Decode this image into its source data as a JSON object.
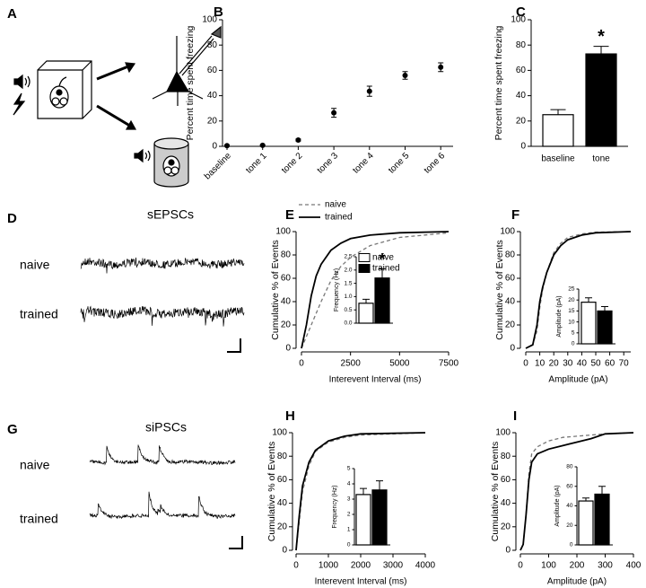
{
  "diagram": {
    "label": "A"
  },
  "traces": [
    {
      "label": "D",
      "title": "sEPSCs",
      "rows": [
        "naive",
        "trained"
      ]
    },
    {
      "label": "G",
      "title": "siPSCs",
      "rows": [
        "naive",
        "trained"
      ]
    }
  ],
  "chart_data": [
    {
      "label": "B",
      "type": "point",
      "ylabel": "Percent time spent freezing",
      "categories": [
        "baseline",
        "tone 1",
        "tone 2",
        "tone 3",
        "tone 4",
        "tone 5",
        "tone 6"
      ],
      "values": [
        0.5,
        0.8,
        5,
        26.5,
        43.5,
        56,
        62.5
      ],
      "errors": [
        0.5,
        0.5,
        0.8,
        3.5,
        4,
        3,
        3.5
      ],
      "color": "#000000",
      "ylim": [
        0,
        100
      ],
      "yticks": [
        0,
        20,
        40,
        60,
        80,
        100
      ]
    },
    {
      "label": "C",
      "type": "bar",
      "ylabel": "Percent time spent freezing",
      "categories": [
        "baseline",
        "tone"
      ],
      "values": [
        25,
        73
      ],
      "errors": [
        4,
        6
      ],
      "colors": [
        "#ffffff",
        "#000000"
      ],
      "annotation": "*",
      "ylim": [
        0,
        100
      ],
      "yticks": [
        0,
        20,
        40,
        60,
        80,
        100
      ]
    },
    {
      "label": "E",
      "type": "line",
      "ylabel": "Cumulative % of Events",
      "xlabel": "Interevent Interval (ms)",
      "xlim": [
        0,
        7500
      ],
      "xticks": [
        0,
        2500,
        5000,
        7500
      ],
      "ylim": [
        0,
        100
      ],
      "yticks": [
        0,
        20,
        40,
        60,
        80,
        100
      ],
      "legend": "top-left",
      "series": [
        {
          "name": "naive",
          "color": "#777777",
          "dashed": true,
          "x": [
            0,
            500,
            1000,
            1500,
            2000,
            2500,
            3500,
            5000,
            7500
          ],
          "values": [
            0,
            20,
            40,
            58,
            70,
            78,
            88,
            95,
            99
          ]
        },
        {
          "name": "trained",
          "color": "#000000",
          "dashed": false,
          "x": [
            0,
            250,
            500,
            750,
            1000,
            1500,
            2000,
            2500,
            3500,
            5000,
            7500
          ],
          "values": [
            0,
            20,
            45,
            62,
            72,
            84,
            90,
            94,
            97,
            99,
            100
          ]
        }
      ],
      "inset": {
        "type": "bar",
        "ylabel": "Frequency (Hz)",
        "ylim": [
          0,
          2.5
        ],
        "yticks": [
          {
            "value": 0,
            "label": "0.0"
          },
          0.5,
          {
            "value": 1,
            "label": "1.0"
          },
          1.5,
          {
            "value": 2,
            "label": "2.0"
          },
          2.5
        ],
        "values": [
          0.75,
          1.7
        ],
        "errors": [
          0.15,
          0.35
        ],
        "colors": [
          "#ffffff",
          "#000000"
        ],
        "legend": [
          "naive",
          "trained"
        ],
        "annotation": "*"
      }
    },
    {
      "label": "F",
      "type": "line",
      "ylabel": "Cumulative % of Events",
      "xlabel": "Amplitude (pA)",
      "xlim": [
        0,
        75
      ],
      "xticks": [
        0,
        10,
        20,
        30,
        40,
        50,
        60,
        70
      ],
      "ylim": [
        0,
        100
      ],
      "yticks": [
        0,
        20,
        40,
        60,
        80,
        100
      ],
      "legend": "none",
      "series": [
        {
          "name": "naive",
          "color": "#777777",
          "dashed": true,
          "x": [
            0,
            5,
            8,
            10,
            12,
            15,
            20,
            25,
            30,
            40,
            50,
            75
          ],
          "values": [
            0,
            3,
            15,
            35,
            50,
            65,
            82,
            90,
            95,
            98,
            99.5,
            100
          ]
        },
        {
          "name": "trained",
          "color": "#000000",
          "dashed": false,
          "x": [
            0,
            5,
            8,
            10,
            12,
            15,
            20,
            25,
            30,
            40,
            50,
            75
          ],
          "values": [
            0,
            3,
            20,
            40,
            52,
            65,
            80,
            88,
            93,
            97,
            99,
            100
          ]
        }
      ],
      "inset": {
        "type": "bar",
        "ylabel": "Amplitude (pA)",
        "ylim": [
          0,
          25
        ],
        "yticks": [
          0,
          5,
          10,
          15,
          20,
          25
        ],
        "values": [
          19,
          15
        ],
        "errors": [
          2,
          2
        ],
        "colors": [
          "#ffffff",
          "#000000"
        ]
      }
    },
    {
      "label": "H",
      "type": "line",
      "ylabel": "Cumulative % of Events",
      "xlabel": "Interevent Interval (ms)",
      "xlim": [
        0,
        4000
      ],
      "xticks": [
        0,
        1000,
        2000,
        3000,
        4000
      ],
      "ylim": [
        0,
        100
      ],
      "yticks": [
        0,
        20,
        40,
        60,
        80,
        100
      ],
      "legend": "none",
      "series": [
        {
          "name": "naive",
          "color": "#777777",
          "dashed": true,
          "x": [
            0,
            100,
            200,
            400,
            600,
            1000,
            1500,
            2000,
            4000
          ],
          "values": [
            0,
            25,
            50,
            72,
            84,
            92,
            96,
            98,
            100
          ]
        },
        {
          "name": "trained",
          "color": "#000000",
          "dashed": false,
          "x": [
            0,
            100,
            200,
            400,
            600,
            1000,
            1500,
            2000,
            4000
          ],
          "values": [
            0,
            30,
            55,
            75,
            85,
            93,
            97,
            99,
            100
          ]
        }
      ],
      "inset": {
        "type": "bar",
        "ylabel": "Frequency (Hz)",
        "ylim": [
          0,
          5
        ],
        "yticks": [
          0,
          1,
          2,
          3,
          4,
          5
        ],
        "values": [
          3.3,
          3.6
        ],
        "errors": [
          0.4,
          0.6
        ],
        "colors": [
          "#ffffff",
          "#000000"
        ]
      }
    },
    {
      "label": "I",
      "type": "line",
      "ylabel": "Cumulative % of Events",
      "xlabel": "Amplitude (pA)",
      "xlim": [
        0,
        400
      ],
      "xticks": [
        0,
        100,
        200,
        300,
        400
      ],
      "ylim": [
        0,
        100
      ],
      "yticks": [
        0,
        20,
        40,
        60,
        80,
        100
      ],
      "legend": "none",
      "series": [
        {
          "name": "naive",
          "color": "#777777",
          "dashed": true,
          "x": [
            0,
            10,
            20,
            30,
            40,
            60,
            100,
            150,
            200,
            300,
            400
          ],
          "values": [
            0,
            5,
            30,
            65,
            82,
            88,
            93,
            96,
            97,
            99,
            100
          ]
        },
        {
          "name": "trained",
          "color": "#000000",
          "dashed": false,
          "x": [
            0,
            10,
            20,
            30,
            40,
            60,
            100,
            150,
            200,
            250,
            300,
            400
          ],
          "values": [
            0,
            5,
            30,
            60,
            75,
            82,
            86,
            89,
            92,
            95,
            99,
            100
          ]
        }
      ],
      "inset": {
        "type": "bar",
        "ylabel": "Amplitude (pA)",
        "ylim": [
          0,
          80
        ],
        "yticks": [
          0,
          20,
          40,
          60,
          80
        ],
        "values": [
          45,
          52
        ],
        "errors": [
          3,
          8
        ],
        "colors": [
          "#ffffff",
          "#000000"
        ]
      }
    }
  ]
}
